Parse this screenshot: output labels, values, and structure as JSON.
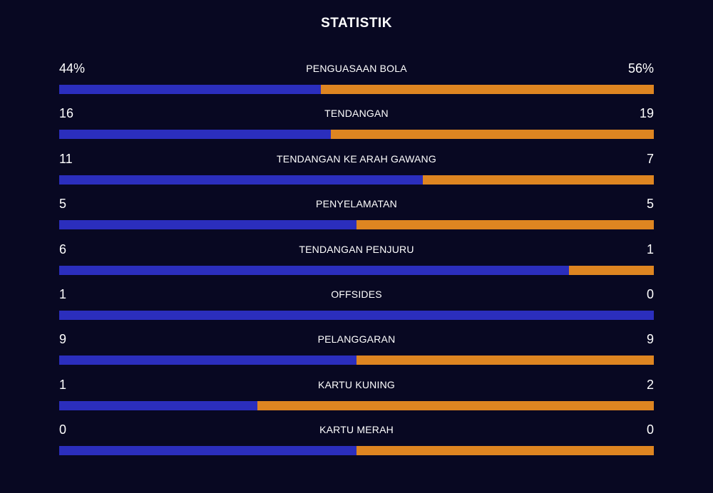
{
  "title": "STATISTIK",
  "colors": {
    "background": "#080822",
    "home": "#2b2ebd",
    "away": "#de8521",
    "text": "#ffffff"
  },
  "stats": [
    {
      "label": "PENGUASAAN BOLA",
      "home": "44%",
      "away": "56%",
      "home_share": 0.44
    },
    {
      "label": "TENDANGAN",
      "home": "16",
      "away": "19",
      "home_share": 0.457
    },
    {
      "label": "TENDANGAN KE ARAH GAWANG",
      "home": "11",
      "away": "7",
      "home_share": 0.611
    },
    {
      "label": "PENYELAMATAN",
      "home": "5",
      "away": "5",
      "home_share": 0.5
    },
    {
      "label": "TENDANGAN PENJURU",
      "home": "6",
      "away": "1",
      "home_share": 0.857
    },
    {
      "label": "OFFSIDES",
      "home": "1",
      "away": "0",
      "home_share": 1.0
    },
    {
      "label": "PELANGGARAN",
      "home": "9",
      "away": "9",
      "home_share": 0.5
    },
    {
      "label": "KARTU KUNING",
      "home": "1",
      "away": "2",
      "home_share": 0.333
    },
    {
      "label": "KARTU MERAH",
      "home": "0",
      "away": "0",
      "home_share": 0.5
    }
  ]
}
